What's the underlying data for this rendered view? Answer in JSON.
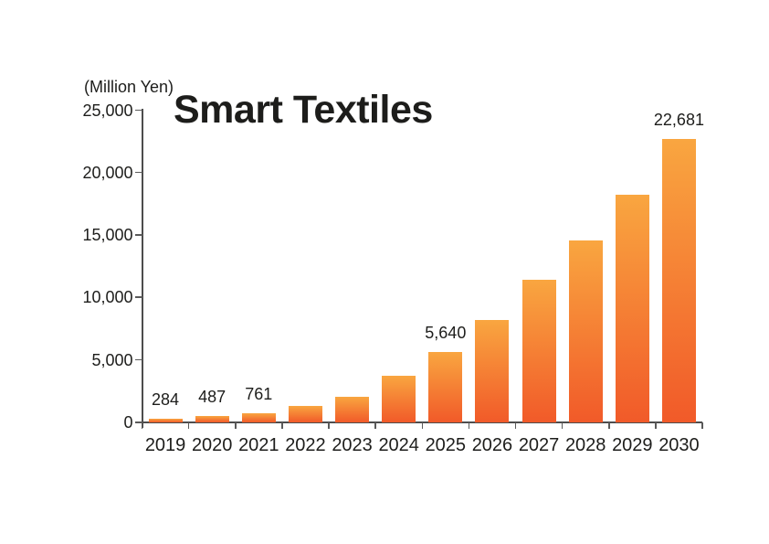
{
  "page": {
    "background_color": "#ffffff",
    "text_color": "#1d1d1b",
    "axis_color": "#4d4d4d"
  },
  "chart_data": {
    "type": "bar",
    "title": "Smart Textiles",
    "unit_label": "(Million Yen)",
    "xlabel": "",
    "ylabel": "Million Yen",
    "categories": [
      "2019",
      "2020",
      "2021",
      "2022",
      "2023",
      "2024",
      "2025",
      "2026",
      "2027",
      "2028",
      "2029",
      "2030"
    ],
    "values": [
      284,
      487,
      761,
      1300,
      2050,
      3750,
      5640,
      8200,
      11400,
      14550,
      18200,
      22681
    ],
    "bar_labels": [
      "284",
      "487",
      "761",
      null,
      null,
      null,
      "5,640",
      null,
      null,
      null,
      null,
      "22,681"
    ],
    "ylim": [
      0,
      25000
    ],
    "yticks": [
      0,
      5000,
      10000,
      15000,
      20000,
      25000
    ],
    "ytick_labels": [
      "0",
      "5,000",
      "10,000",
      "15,000",
      "20,000",
      "25,000"
    ],
    "grid": false,
    "legend": null,
    "colors": {
      "bar_gradient_top": "#F9A640",
      "bar_gradient_bottom": "#F15A29"
    }
  }
}
